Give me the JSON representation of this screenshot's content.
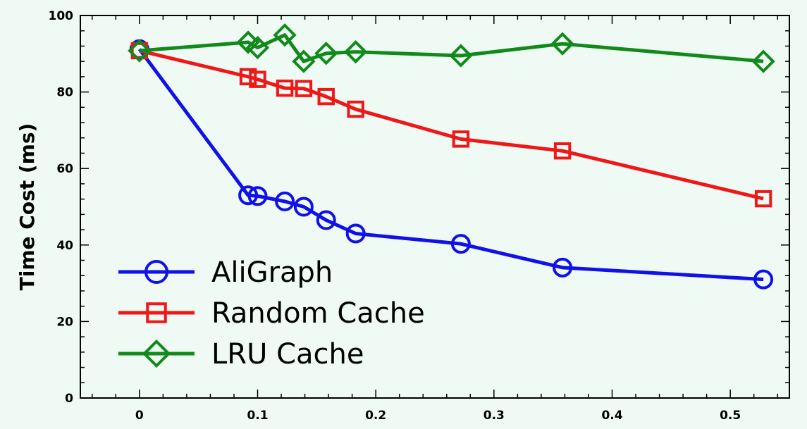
{
  "chart_data": {
    "type": "line",
    "title": "",
    "xlabel": "",
    "ylabel": "Time Cost (ms)",
    "xlim": [
      -0.05,
      0.55
    ],
    "ylim": [
      0,
      100
    ],
    "xticks": [
      0,
      0.1,
      0.2,
      0.3,
      0.4,
      0.5
    ],
    "xtick_labels": [
      "0",
      "0.1",
      "0.2",
      "0.3",
      "0.4",
      "0.5"
    ],
    "yticks": [
      0,
      20,
      40,
      60,
      80,
      100
    ],
    "ytick_labels": [
      "0",
      "20",
      "40",
      "60",
      "80",
      "100"
    ],
    "grid": false,
    "legend_position": "lower-left",
    "series": [
      {
        "name": "AliGraph",
        "color": "#1010e8",
        "marker": "circle",
        "x": [
          0,
          0.092,
          0.1,
          0.123,
          0.139,
          0.158,
          0.183,
          0.272,
          0.358,
          0.528
        ],
        "y": [
          91.2,
          53.0,
          52.8,
          51.4,
          50.0,
          46.5,
          43.0,
          40.3,
          34.1,
          31.0
        ]
      },
      {
        "name": "Random Cache",
        "color": "#ee1818",
        "marker": "square",
        "x": [
          0,
          0.092,
          0.1,
          0.123,
          0.139,
          0.158,
          0.183,
          0.272,
          0.358,
          0.528
        ],
        "y": [
          90.8,
          84.0,
          83.3,
          81.0,
          80.9,
          78.8,
          75.5,
          67.7,
          64.6,
          52.1
        ]
      },
      {
        "name": "LRU Cache",
        "color": "#11891b",
        "marker": "diamond",
        "x": [
          0,
          0.092,
          0.1,
          0.123,
          0.139,
          0.158,
          0.183,
          0.272,
          0.358,
          0.528
        ],
        "y": [
          90.8,
          93.0,
          91.6,
          94.9,
          88.0,
          90.1,
          90.5,
          89.5,
          92.6,
          88.0
        ]
      }
    ]
  }
}
